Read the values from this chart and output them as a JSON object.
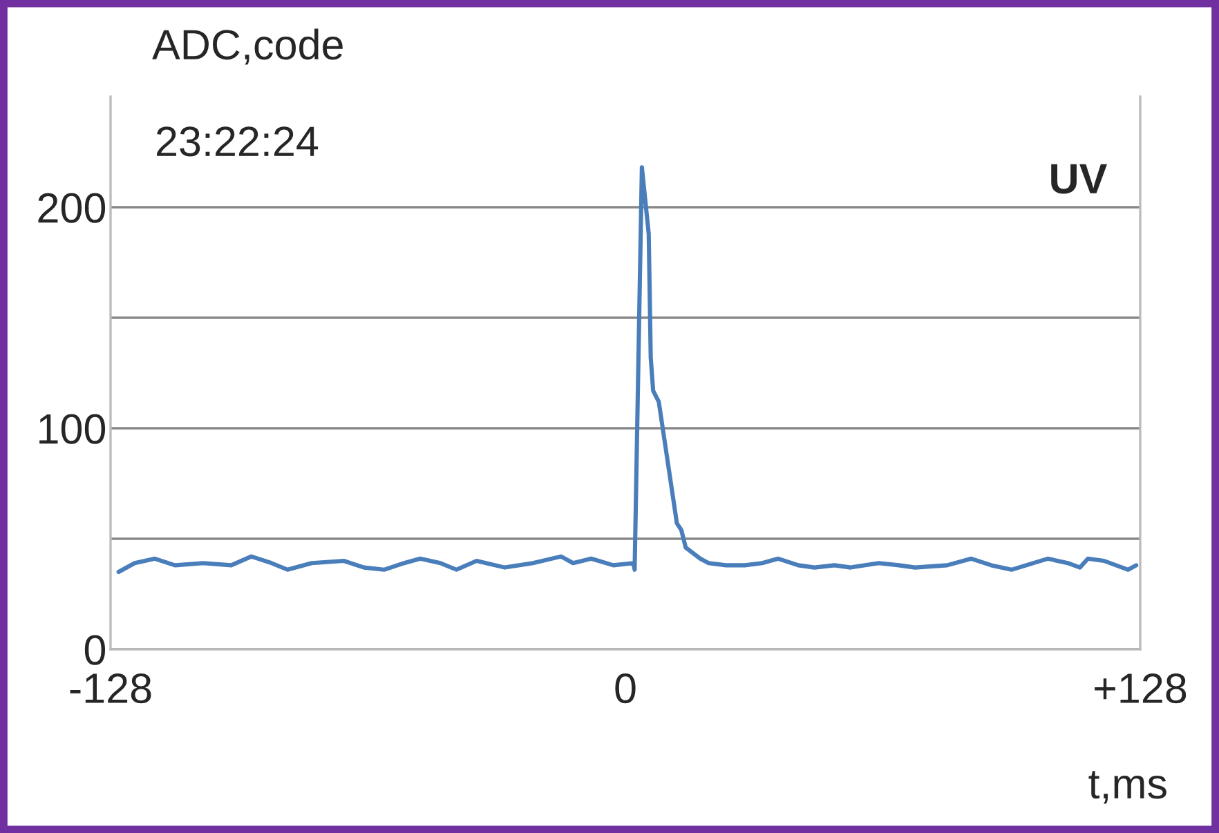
{
  "chart_data": {
    "type": "line",
    "ylabel": "ADC,code",
    "xlabel": "t,ms",
    "annotations": [
      "23:22:24",
      "UV"
    ],
    "xlim": [
      -128,
      128
    ],
    "xticks": [
      -128,
      0,
      {
        "value": 128,
        "label": "+128"
      }
    ],
    "ylim": [
      0,
      250
    ],
    "yticks": [
      0,
      {
        "value": 50,
        "label": null
      },
      100,
      {
        "value": 150,
        "label": null
      },
      200
    ],
    "grid": "y",
    "legend": false,
    "marker": "none",
    "line_style": "solid",
    "series": [
      {
        "color": "#4a7ebb",
        "x": [
          -126,
          -122,
          -117,
          -112,
          -105,
          -98,
          -93,
          -88,
          -84,
          -78,
          -70,
          -65,
          -60,
          -55,
          -51,
          -46,
          -42,
          -37,
          -30,
          -23,
          -16,
          -13,
          -8.5,
          -3,
          2,
          2.3,
          4.1,
          5.8,
          6.3,
          6.9,
          8.3,
          12.8,
          13.9,
          15,
          18.6,
          20.7,
          25,
          29.7,
          34,
          38,
          43,
          47,
          52,
          56,
          63,
          68,
          72,
          80,
          86,
          91,
          96,
          105,
          110,
          113,
          115,
          119,
          125,
          127
        ],
        "values": [
          35,
          39,
          41,
          38,
          39,
          38,
          42,
          39,
          36,
          39,
          40,
          37,
          36,
          39,
          41,
          39,
          36,
          40,
          37,
          39,
          42,
          39,
          41,
          38,
          39,
          36,
          218,
          188,
          132,
          117,
          112,
          57,
          54,
          46,
          41,
          39,
          38,
          38,
          39,
          41,
          38,
          37,
          38,
          37,
          39,
          38,
          37,
          38,
          41,
          38,
          36,
          41,
          39,
          37,
          41,
          40,
          36,
          38
        ]
      }
    ]
  }
}
